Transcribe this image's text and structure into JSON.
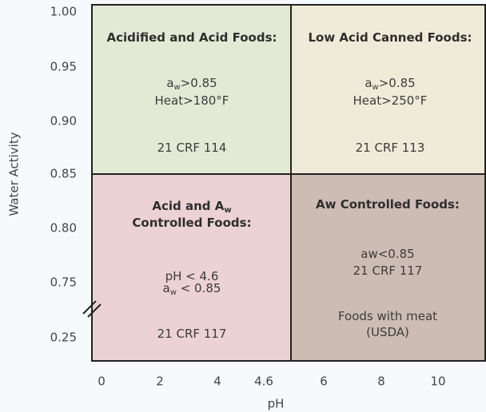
{
  "y_axis": {
    "label": "Water Activity",
    "ticks": [
      "1.00",
      "0.95",
      "0.90",
      "0.85",
      "0.80",
      "0.75",
      "0.25"
    ]
  },
  "x_axis": {
    "label": "pH",
    "ticks": [
      "0",
      "2",
      "4",
      "4.6",
      "6",
      "8",
      "10"
    ]
  },
  "quadrants": [
    {
      "title": [
        {
          "text": "Acidified and Acid Foods:"
        }
      ],
      "lines": [
        {
          "text": "a",
          "sub": "w",
          "tail": ">0.85"
        },
        {
          "text": "Heat>180°F"
        },
        {
          "text": "21 CRF 114"
        }
      ]
    },
    {
      "title": [
        {
          "text": "Low Acid Canned Foods:"
        }
      ],
      "lines": [
        {
          "text": "a",
          "sub": "w",
          "tail": ">0.85"
        },
        {
          "text": "Heat>250°F"
        },
        {
          "text": "21 CRF 113"
        }
      ]
    },
    {
      "title": [
        {
          "text": "Acid and A",
          "sub": "w"
        },
        {
          "text": "Controlled Foods:"
        }
      ],
      "lines": [
        {
          "text": "pH < 4.6"
        },
        {
          "text": "a",
          "sub": "w",
          "tail": " < 0.85"
        },
        {
          "text": "21 CRF 117"
        }
      ]
    },
    {
      "title": [
        {
          "text": "Aw Controlled Foods:"
        }
      ],
      "lines": [
        {
          "text": "aw<0.85"
        },
        {
          "text": "21 CRF 117"
        },
        {
          "text": "Foods with meat"
        },
        {
          "text": "(USDA)"
        }
      ]
    }
  ]
}
